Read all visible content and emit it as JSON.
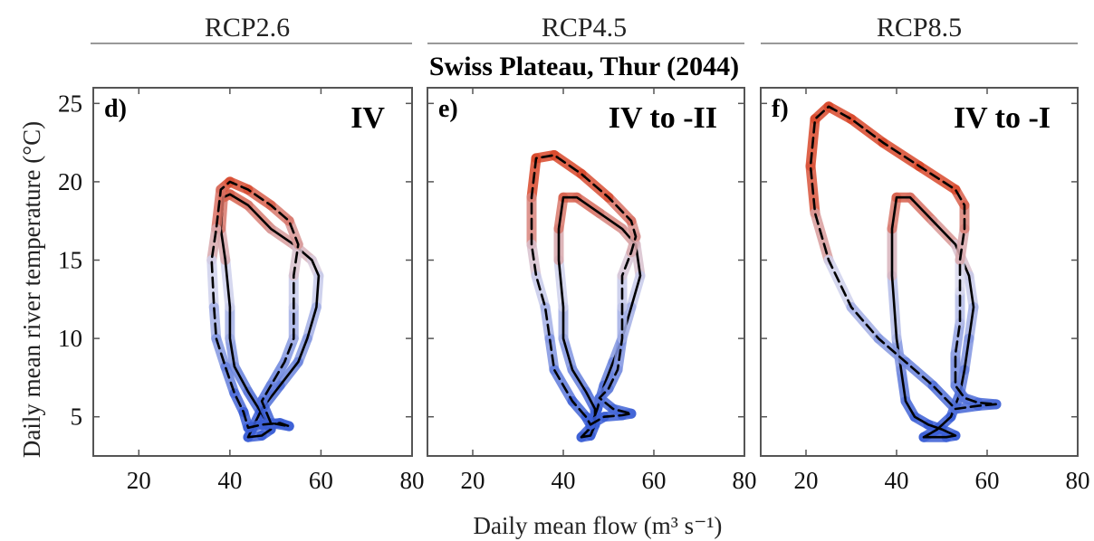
{
  "chart_data": {
    "type": "line",
    "title": "Swiss Plateau, Thur (2044)",
    "xlabel": "Daily mean flow (m³ s⁻¹)",
    "ylabel": "Daily mean river temperature (°C)",
    "xlim": [
      10,
      80
    ],
    "ylim": [
      2.5,
      26
    ],
    "xticks": [
      20,
      40,
      60,
      80
    ],
    "yticks": [
      5,
      10,
      15,
      20,
      25
    ],
    "grid": false,
    "color_scale": {
      "cold": "#3b5fd6",
      "mid": "#d9d9ee",
      "warm": "#d9482b"
    },
    "panels": [
      {
        "scenario": "RCP2.6",
        "panel_label": "d)",
        "regime": "IV",
        "series": [
          {
            "style": "solid",
            "points": [
              [
                44,
                3.7
              ],
              [
                47,
                3.8
              ],
              [
                49,
                4.2
              ],
              [
                47,
                5.2
              ],
              [
                44,
                6.6
              ],
              [
                41,
                8.2
              ],
              [
                40,
                10
              ],
              [
                40,
                12
              ],
              [
                39,
                15
              ],
              [
                38,
                17
              ],
              [
                38.5,
                19
              ],
              [
                40,
                19.2
              ],
              [
                44,
                18.5
              ],
              [
                49,
                17
              ],
              [
                54,
                16
              ],
              [
                58,
                15
              ],
              [
                59.5,
                14
              ],
              [
                59,
                12
              ],
              [
                57,
                10
              ],
              [
                55,
                8.5
              ],
              [
                51,
                7
              ],
              [
                47,
                5.5
              ],
              [
                45,
                4.3
              ],
              [
                44,
                3.7
              ]
            ]
          },
          {
            "style": "dashed",
            "points": [
              [
                44,
                4.3
              ],
              [
                47,
                4.5
              ],
              [
                51,
                4.6
              ],
              [
                53,
                4.4
              ],
              [
                49,
                4.6
              ],
              [
                47,
                6
              ],
              [
                49,
                7
              ],
              [
                52,
                8.5
              ],
              [
                54,
                10
              ],
              [
                54,
                12
              ],
              [
                54,
                14
              ],
              [
                55,
                16
              ],
              [
                53,
                17.5
              ],
              [
                49,
                18.5
              ],
              [
                44,
                19.5
              ],
              [
                40,
                20
              ],
              [
                38,
                19.5
              ],
              [
                37,
                17
              ],
              [
                36,
                15
              ],
              [
                36.5,
                12
              ],
              [
                37,
                10
              ],
              [
                39,
                8.2
              ],
              [
                41,
                6.5
              ],
              [
                43,
                5.3
              ],
              [
                44,
                4.3
              ]
            ]
          }
        ]
      },
      {
        "scenario": "RCP4.5",
        "panel_label": "e)",
        "regime": "IV to -II",
        "series": [
          {
            "style": "solid",
            "points": [
              [
                44,
                3.7
              ],
              [
                46,
                3.8
              ],
              [
                47,
                4.5
              ],
              [
                47,
                5.5
              ],
              [
                45,
                6.6
              ],
              [
                42,
                8
              ],
              [
                40,
                10
              ],
              [
                40,
                12
              ],
              [
                39,
                15
              ],
              [
                39,
                17
              ],
              [
                40,
                19
              ],
              [
                43,
                19
              ],
              [
                48,
                18
              ],
              [
                53,
                17
              ],
              [
                56,
                16
              ],
              [
                57,
                14
              ],
              [
                55,
                12
              ],
              [
                53,
                10
              ],
              [
                51,
                8.5
              ],
              [
                49,
                7
              ],
              [
                47.5,
                5.5
              ],
              [
                46,
                4.3
              ],
              [
                44,
                3.7
              ]
            ]
          },
          {
            "style": "dashed",
            "points": [
              [
                46,
                4.5
              ],
              [
                49,
                5
              ],
              [
                53,
                5.1
              ],
              [
                55,
                5.2
              ],
              [
                51,
                5.5
              ],
              [
                48,
                6.2
              ],
              [
                50,
                6.8
              ],
              [
                52,
                8
              ],
              [
                53,
                10
              ],
              [
                53,
                12
              ],
              [
                53,
                14
              ],
              [
                55,
                15.5
              ],
              [
                56,
                16.5
              ],
              [
                55,
                17.5
              ],
              [
                50,
                19
              ],
              [
                44,
                20.5
              ],
              [
                38,
                21.7
              ],
              [
                34,
                21.5
              ],
              [
                33,
                19
              ],
              [
                33,
                16
              ],
              [
                34,
                14
              ],
              [
                36,
                12
              ],
              [
                37,
                10
              ],
              [
                38,
                8
              ],
              [
                42,
                6
              ],
              [
                45,
                5
              ],
              [
                46,
                4.5
              ]
            ]
          }
        ]
      },
      {
        "scenario": "RCP8.5",
        "panel_label": "f)",
        "regime": "IV to -I",
        "series": [
          {
            "style": "solid",
            "points": [
              [
                46,
                3.7
              ],
              [
                51,
                3.7
              ],
              [
                53,
                3.8
              ],
              [
                50,
                4.2
              ],
              [
                47,
                4.5
              ],
              [
                44,
                5
              ],
              [
                42,
                6
              ],
              [
                41,
                8
              ],
              [
                40,
                10
              ],
              [
                39,
                14
              ],
              [
                39,
                17
              ],
              [
                40,
                19
              ],
              [
                43,
                19
              ],
              [
                48,
                17.5
              ],
              [
                53,
                16
              ],
              [
                56,
                14
              ],
              [
                57,
                12
              ],
              [
                56,
                10
              ],
              [
                55,
                8
              ],
              [
                54,
                6.5
              ],
              [
                52,
                5
              ],
              [
                49,
                4.2
              ],
              [
                46,
                3.7
              ]
            ]
          },
          {
            "style": "dashed",
            "points": [
              [
                53,
                5.5
              ],
              [
                58,
                5.7
              ],
              [
                62,
                5.8
              ],
              [
                58,
                5.9
              ],
              [
                55,
                6.2
              ],
              [
                53,
                7
              ],
              [
                53,
                9
              ],
              [
                54,
                11
              ],
              [
                54,
                13
              ],
              [
                54,
                15
              ],
              [
                55,
                17
              ],
              [
                55,
                18.5
              ],
              [
                53,
                19.5
              ],
              [
                45,
                21
              ],
              [
                37,
                22.5
              ],
              [
                30,
                24
              ],
              [
                25,
                24.8
              ],
              [
                22,
                24
              ],
              [
                21,
                21
              ],
              [
                22,
                18
              ],
              [
                25,
                15
              ],
              [
                30,
                12
              ],
              [
                36,
                10
              ],
              [
                42,
                8.5
              ],
              [
                48,
                7
              ],
              [
                53,
                5.5
              ]
            ]
          }
        ]
      }
    ]
  }
}
